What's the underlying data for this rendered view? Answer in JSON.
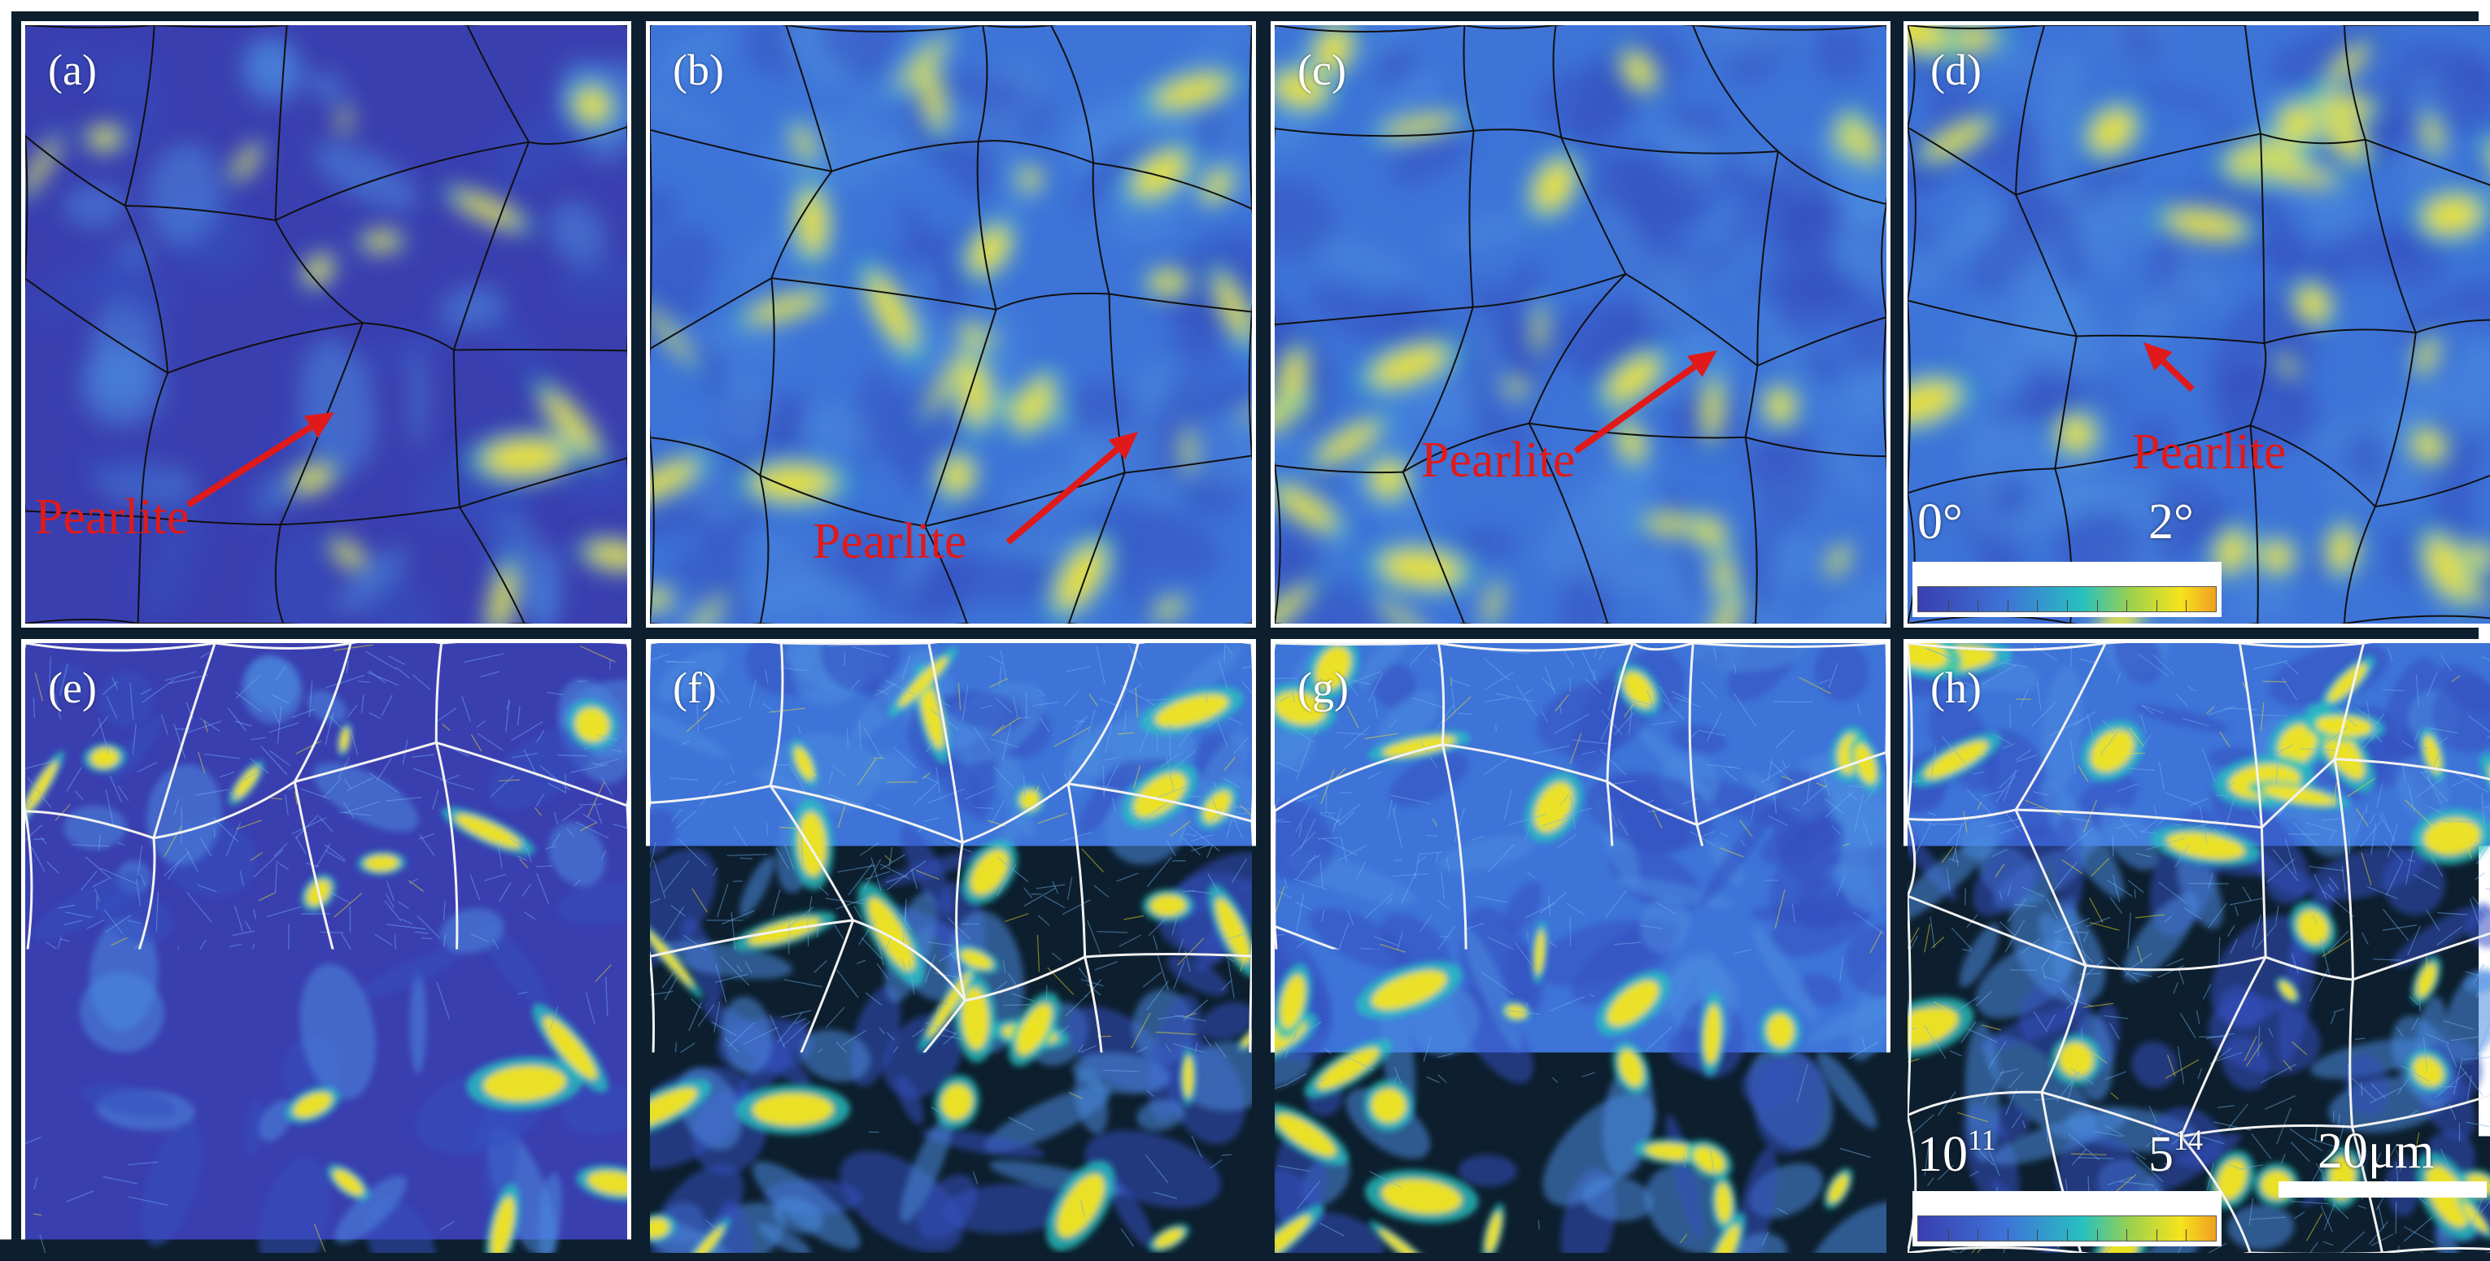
{
  "figure": {
    "colors": {
      "background_blue": "#3a3fb0",
      "mid_blue": "#3e74d8",
      "cyan": "#27c0c0",
      "yellow": "#f5e41e",
      "boundary_black": "#101010",
      "boundary_white": "#f2f2f2",
      "annotation_red": "#e01a1a"
    },
    "panels": [
      {
        "id": "a",
        "label": "(a)",
        "row": "top",
        "map": "misorientation"
      },
      {
        "id": "b",
        "label": "(b)",
        "row": "top",
        "map": "misorientation"
      },
      {
        "id": "c",
        "label": "(c)",
        "row": "top",
        "map": "misorientation"
      },
      {
        "id": "d",
        "label": "(d)",
        "row": "top",
        "map": "misorientation"
      },
      {
        "id": "e",
        "label": "(e)",
        "row": "bottom",
        "map": "dislocation-density"
      },
      {
        "id": "f",
        "label": "(f)",
        "row": "bottom",
        "map": "dislocation-density"
      },
      {
        "id": "g",
        "label": "(g)",
        "row": "bottom",
        "map": "dislocation-density"
      },
      {
        "id": "h",
        "label": "(h)",
        "row": "bottom",
        "map": "dislocation-density"
      }
    ],
    "annotations": {
      "a": "Pearlite",
      "b": "Pearlite",
      "c": "Pearlite",
      "d": "Pearlite"
    },
    "legend_top": {
      "min": "0°",
      "max": "2°"
    },
    "legend_bottom": {
      "min_base": "10",
      "min_exp": "11",
      "max_base": "5",
      "max_exp": "14"
    },
    "scale_bar": {
      "label": "20μm"
    }
  }
}
